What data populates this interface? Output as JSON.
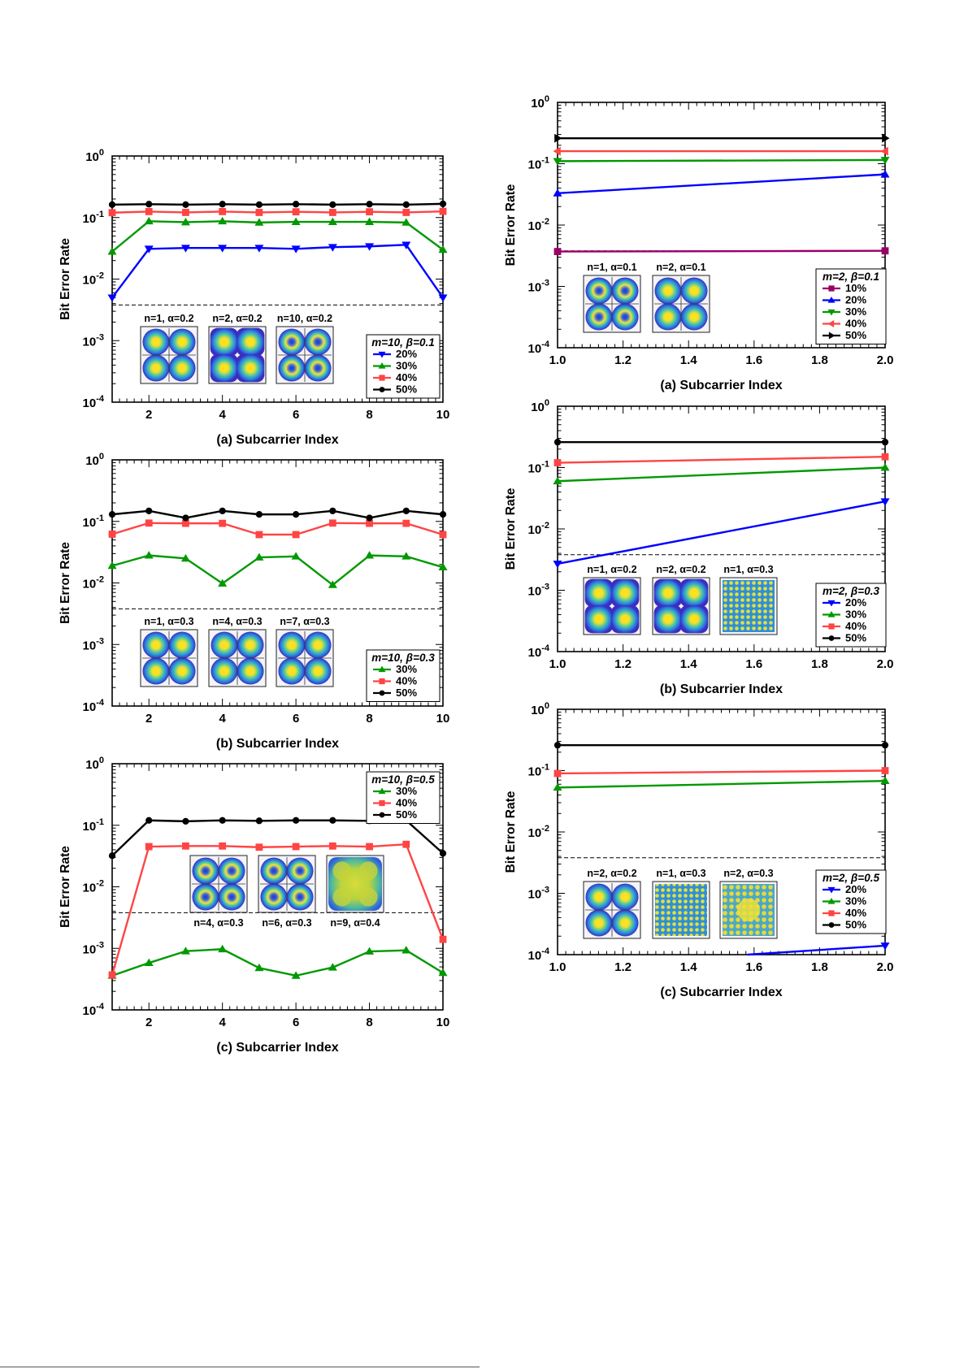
{
  "chart_data": [
    {
      "id": "L1",
      "type": "line",
      "side": "left",
      "xlabel": "(a) Subcarrier Index",
      "ylabel": "Bit Error Rate",
      "xlim": [
        1,
        10
      ],
      "ylim": [
        0.0001,
        1
      ],
      "yscale": "log",
      "xticks": [
        2,
        4,
        6,
        8,
        10
      ],
      "xtick_labels": [
        "2",
        "4",
        "6",
        "8",
        "10"
      ],
      "yticks": [
        -4,
        -3,
        -2,
        -1,
        0
      ],
      "ytick_labels": [
        {
          "base": "10",
          "exp": "-4"
        },
        {
          "base": "10",
          "exp": "-3"
        },
        {
          "base": "10",
          "exp": "-2"
        },
        {
          "base": "10",
          "exp": "-1"
        },
        {
          "base": "10",
          "exp": "0"
        }
      ],
      "threshold": 0.0038,
      "legend_title": "m=10, β=0.1",
      "series": [
        {
          "name": "20%",
          "color": "#0000ff",
          "marker": "triangle-down",
          "x": [
            1,
            2,
            3,
            4,
            5,
            6,
            7,
            8,
            9,
            10
          ],
          "y": [
            0.005,
            0.031,
            0.032,
            0.032,
            0.032,
            0.031,
            0.033,
            0.034,
            0.036,
            0.005
          ]
        },
        {
          "name": "30%",
          "color": "#009900",
          "marker": "triangle-up",
          "x": [
            1,
            2,
            3,
            4,
            5,
            6,
            7,
            8,
            9,
            10
          ],
          "y": [
            0.028,
            0.087,
            0.084,
            0.087,
            0.083,
            0.085,
            0.085,
            0.085,
            0.083,
            0.03
          ]
        },
        {
          "name": "40%",
          "color": "#ff4444",
          "marker": "square",
          "x": [
            1,
            2,
            3,
            4,
            5,
            6,
            7,
            8,
            9,
            10
          ],
          "y": [
            0.12,
            0.125,
            0.121,
            0.125,
            0.121,
            0.124,
            0.121,
            0.124,
            0.121,
            0.126
          ]
        },
        {
          "name": "50%",
          "color": "#000000",
          "marker": "circle",
          "x": [
            1,
            2,
            3,
            4,
            5,
            6,
            7,
            8,
            9,
            10
          ],
          "y": [
            0.162,
            0.165,
            0.162,
            0.165,
            0.162,
            0.165,
            0.162,
            0.165,
            0.162,
            0.167
          ]
        }
      ],
      "insets": [
        "n=1, α=0.2",
        "n=2, α=0.2",
        "n=10, α=0.2"
      ],
      "inset_styles": [
        "four",
        "four-square",
        "four-ring"
      ]
    },
    {
      "id": "L2",
      "type": "line",
      "side": "left",
      "xlabel": "(b) Subcarrier Index",
      "ylabel": "Bit Error Rate",
      "xlim": [
        1,
        10
      ],
      "ylim": [
        0.0001,
        1
      ],
      "yscale": "log",
      "xticks": [
        2,
        4,
        6,
        8,
        10
      ],
      "xtick_labels": [
        "2",
        "4",
        "6",
        "8",
        "10"
      ],
      "yticks": [
        -4,
        -3,
        -2,
        -1,
        0
      ],
      "ytick_labels": [
        {
          "base": "10",
          "exp": "-4"
        },
        {
          "base": "10",
          "exp": "-3"
        },
        {
          "base": "10",
          "exp": "-2"
        },
        {
          "base": "10",
          "exp": "-1"
        },
        {
          "base": "10",
          "exp": "0"
        }
      ],
      "threshold": 0.0038,
      "legend_title": "m=10, β=0.3",
      "series": [
        {
          "name": "30%",
          "color": "#009900",
          "marker": "triangle-up",
          "x": [
            1,
            2,
            3,
            4,
            5,
            6,
            7,
            8,
            9,
            10
          ],
          "y": [
            0.019,
            0.028,
            0.025,
            0.0098,
            0.026,
            0.027,
            0.0093,
            0.028,
            0.027,
            0.018
          ]
        },
        {
          "name": "40%",
          "color": "#ff4444",
          "marker": "square",
          "x": [
            1,
            2,
            3,
            4,
            5,
            6,
            7,
            8,
            9,
            10
          ],
          "y": [
            0.062,
            0.094,
            0.093,
            0.093,
            0.061,
            0.061,
            0.094,
            0.093,
            0.093,
            0.061
          ]
        },
        {
          "name": "50%",
          "color": "#000000",
          "marker": "circle",
          "x": [
            1,
            2,
            3,
            4,
            5,
            6,
            7,
            8,
            9,
            10
          ],
          "y": [
            0.13,
            0.148,
            0.114,
            0.148,
            0.13,
            0.13,
            0.148,
            0.114,
            0.148,
            0.13
          ]
        }
      ],
      "insets": [
        "n=1, α=0.3",
        "n=4, α=0.3",
        "n=7, α=0.3"
      ],
      "inset_styles": [
        "four",
        "four",
        "four"
      ]
    },
    {
      "id": "L3",
      "type": "line",
      "side": "left",
      "xlabel": "(c) Subcarrier Index",
      "ylabel": "Bit Error Rate",
      "xlim": [
        1,
        10
      ],
      "ylim": [
        0.0001,
        1
      ],
      "yscale": "log",
      "xticks": [
        2,
        4,
        6,
        8,
        10
      ],
      "xtick_labels": [
        "2",
        "4",
        "6",
        "8",
        "10"
      ],
      "yticks": [
        -4,
        -3,
        -2,
        -1,
        0
      ],
      "ytick_labels": [
        {
          "base": "10",
          "exp": "-4"
        },
        {
          "base": "10",
          "exp": "-3"
        },
        {
          "base": "10",
          "exp": "-2"
        },
        {
          "base": "10",
          "exp": "-1"
        },
        {
          "base": "10",
          "exp": "0"
        }
      ],
      "threshold": 0.0038,
      "legend_title": "m=10, β=0.5",
      "series": [
        {
          "name": "30%",
          "color": "#009900",
          "marker": "triangle-up",
          "x": [
            1,
            2,
            3,
            4,
            5,
            6,
            7,
            8,
            9,
            10
          ],
          "y": [
            0.00036,
            0.00058,
            0.0009,
            0.00097,
            0.00048,
            0.00036,
            0.00049,
            0.00089,
            0.00093,
            0.0004
          ]
        },
        {
          "name": "40%",
          "color": "#ff4444",
          "marker": "square",
          "x": [
            1,
            2,
            3,
            4,
            5,
            6,
            7,
            8,
            9,
            10
          ],
          "y": [
            0.00037,
            0.045,
            0.046,
            0.046,
            0.044,
            0.045,
            0.046,
            0.045,
            0.049,
            0.0014
          ]
        },
        {
          "name": "50%",
          "color": "#000000",
          "marker": "circle",
          "x": [
            1,
            2,
            3,
            4,
            5,
            6,
            7,
            8,
            9,
            10
          ],
          "y": [
            0.032,
            0.12,
            0.116,
            0.12,
            0.118,
            0.12,
            0.12,
            0.118,
            0.12,
            0.035
          ]
        }
      ],
      "insets": [
        "n=4, α=0.3",
        "n=6, α=0.3",
        "n=9, α=0.4"
      ],
      "inset_styles": [
        "four-ring",
        "four-ring",
        "blob"
      ]
    },
    {
      "id": "R1",
      "type": "line",
      "side": "right",
      "xlabel": "(a) Subcarrier Index",
      "ylabel": "Bit Error Rate",
      "xlim": [
        1,
        2
      ],
      "ylim": [
        0.0001,
        1
      ],
      "yscale": "log",
      "xticks": [
        1.0,
        1.2,
        1.4,
        1.6,
        1.8,
        2.0
      ],
      "xtick_labels": [
        "1.0",
        "1.2",
        "1.4",
        "1.6",
        "1.8",
        "2.0"
      ],
      "yticks": [
        -4,
        -3,
        -2,
        -1,
        0
      ],
      "ytick_labels": [
        {
          "base": "10",
          "exp": "-4"
        },
        {
          "base": "10",
          "exp": "-3"
        },
        {
          "base": "10",
          "exp": "-2"
        },
        {
          "base": "10",
          "exp": "-1"
        },
        {
          "base": "10",
          "exp": "0"
        }
      ],
      "threshold": 0.0038,
      "legend_title": "m=2, β=0.1",
      "series": [
        {
          "name": "10%",
          "color": "#990066",
          "marker": "square",
          "x": [
            1,
            2
          ],
          "y": [
            0.0037,
            0.0038
          ]
        },
        {
          "name": "20%",
          "color": "#0000ff",
          "marker": "triangle-up",
          "x": [
            1,
            2
          ],
          "y": [
            0.033,
            0.067
          ]
        },
        {
          "name": "30%",
          "color": "#009900",
          "marker": "triangle-down",
          "x": [
            1,
            2
          ],
          "y": [
            0.11,
            0.115
          ]
        },
        {
          "name": "40%",
          "color": "#ff4444",
          "marker": "triangle-left",
          "x": [
            1,
            2
          ],
          "y": [
            0.16,
            0.16
          ]
        },
        {
          "name": "50%",
          "color": "#000000",
          "marker": "triangle-right",
          "x": [
            1,
            2
          ],
          "y": [
            0.26,
            0.26
          ]
        }
      ],
      "insets": [
        "n=1, α=0.1",
        "n=2, α=0.1"
      ],
      "inset_styles": [
        "four-ring",
        "four"
      ]
    },
    {
      "id": "R2",
      "type": "line",
      "side": "right",
      "xlabel": "(b) Subcarrier Index",
      "ylabel": "Bit Error Rate",
      "xlim": [
        1,
        2
      ],
      "ylim": [
        0.0001,
        1
      ],
      "yscale": "log",
      "xticks": [
        1.0,
        1.2,
        1.4,
        1.6,
        1.8,
        2.0
      ],
      "xtick_labels": [
        "1.0",
        "1.2",
        "1.4",
        "1.6",
        "1.8",
        "2.0"
      ],
      "yticks": [
        -4,
        -3,
        -2,
        -1,
        0
      ],
      "ytick_labels": [
        {
          "base": "10",
          "exp": "-4"
        },
        {
          "base": "10",
          "exp": "-3"
        },
        {
          "base": "10",
          "exp": "-2"
        },
        {
          "base": "10",
          "exp": "-1"
        },
        {
          "base": "10",
          "exp": "0"
        }
      ],
      "threshold": 0.0038,
      "legend_title": "m=2, β=0.3",
      "series": [
        {
          "name": "20%",
          "color": "#0000ff",
          "marker": "triangle-down",
          "x": [
            1,
            2
          ],
          "y": [
            0.0027,
            0.028
          ]
        },
        {
          "name": "30%",
          "color": "#009900",
          "marker": "triangle-up",
          "x": [
            1,
            2
          ],
          "y": [
            0.06,
            0.1
          ]
        },
        {
          "name": "40%",
          "color": "#ff4444",
          "marker": "square",
          "x": [
            1,
            2
          ],
          "y": [
            0.12,
            0.15
          ]
        },
        {
          "name": "50%",
          "color": "#000000",
          "marker": "circle",
          "x": [
            1,
            2
          ],
          "y": [
            0.26,
            0.26
          ]
        }
      ],
      "insets": [
        "n=1, α=0.2",
        "n=2, α=0.2",
        "n=1, α=0.3"
      ],
      "inset_styles": [
        "four-square",
        "four-square",
        "grid"
      ]
    },
    {
      "id": "R3",
      "type": "line",
      "side": "right",
      "xlabel": "(c) Subcarrier Index",
      "ylabel": "Bit Error Rate",
      "xlim": [
        1,
        2
      ],
      "ylim": [
        0.0001,
        1
      ],
      "yscale": "log",
      "xticks": [
        1.0,
        1.2,
        1.4,
        1.6,
        1.8,
        2.0
      ],
      "xtick_labels": [
        "1.0",
        "1.2",
        "1.4",
        "1.6",
        "1.8",
        "2.0"
      ],
      "yticks": [
        -4,
        -3,
        -2,
        -1,
        0
      ],
      "ytick_labels": [
        {
          "base": "10",
          "exp": "-4"
        },
        {
          "base": "10",
          "exp": "-3"
        },
        {
          "base": "10",
          "exp": "-2"
        },
        {
          "base": "10",
          "exp": "-1"
        },
        {
          "base": "10",
          "exp": "0"
        }
      ],
      "threshold": 0.0038,
      "legend_title": "m=2, β=0.5",
      "series": [
        {
          "name": "20%",
          "color": "#0000ff",
          "marker": "triangle-down",
          "x": [
            1.58,
            2
          ],
          "y": [
            0.0001,
            0.00014
          ],
          "show_first_marker": false
        },
        {
          "name": "30%",
          "color": "#009900",
          "marker": "triangle-up",
          "x": [
            1,
            2
          ],
          "y": [
            0.053,
            0.068
          ]
        },
        {
          "name": "40%",
          "color": "#ff4444",
          "marker": "square",
          "x": [
            1,
            2
          ],
          "y": [
            0.09,
            0.1
          ]
        },
        {
          "name": "50%",
          "color": "#000000",
          "marker": "circle",
          "x": [
            1,
            2
          ],
          "y": [
            0.26,
            0.26
          ]
        }
      ],
      "insets": [
        "n=2, α=0.2",
        "n=1, α=0.3",
        "n=2, α=0.3"
      ],
      "inset_styles": [
        "four",
        "grid",
        "grid-yellow"
      ]
    }
  ]
}
